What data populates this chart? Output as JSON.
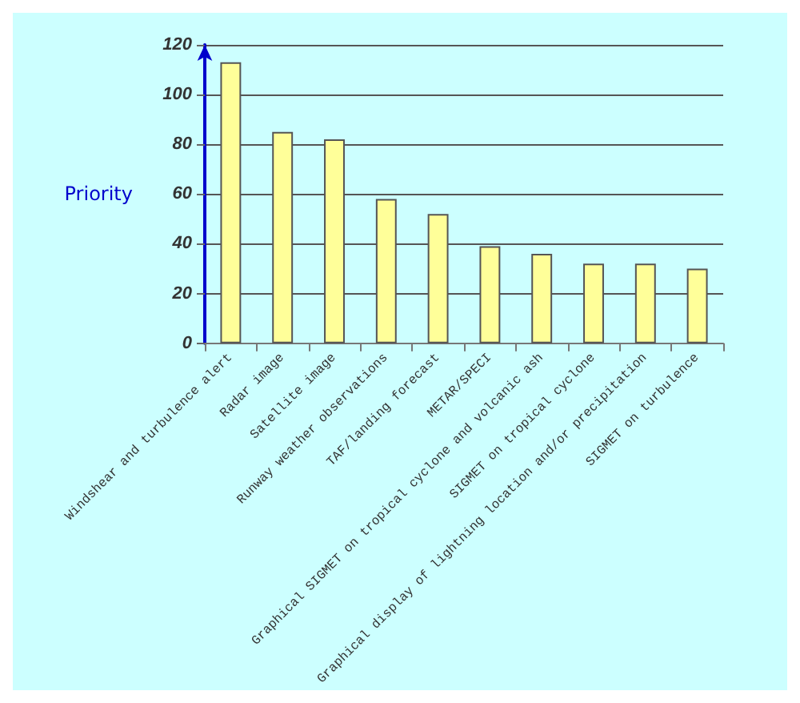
{
  "chart_data": {
    "type": "bar",
    "ylabel": "Priority",
    "categories": [
      "Windshear and turbulence alert",
      "Radar image",
      "Satellite image",
      "Runway weather observations",
      "TAF/landing forecast",
      "METAR/SPECI",
      "Graphical SIGMET on tropical cyclone and volcanic ash",
      "SIGMET on tropical cyclone",
      "Graphical display of lightning location and/or precipitation",
      "SIGMET on turbulence"
    ],
    "values": [
      113,
      85,
      82,
      58,
      52,
      39,
      36,
      32,
      32,
      30
    ],
    "color": "#ffff99",
    "ylim": [
      0,
      120
    ],
    "yticks": [
      0,
      20,
      40,
      60,
      80,
      100,
      120
    ],
    "grid": "y"
  }
}
